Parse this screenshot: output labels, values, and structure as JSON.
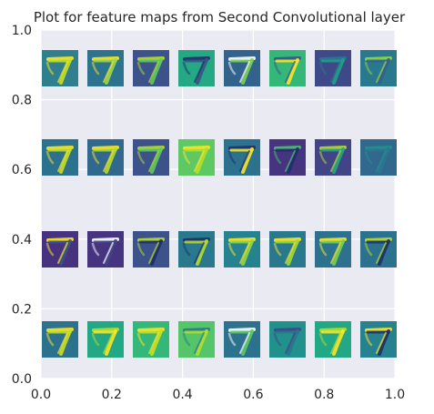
{
  "chart_data": {
    "type": "image-grid",
    "title": "Plot for feature maps from Second Convolutional layer",
    "xlabel": "",
    "ylabel": "",
    "xlim": [
      0.0,
      1.0
    ],
    "ylim": [
      0.0,
      1.0
    ],
    "x_ticks": [
      "0.0",
      "0.2",
      "0.4",
      "0.6",
      "0.8",
      "1.0"
    ],
    "y_ticks": [
      "0.0",
      "0.2",
      "0.4",
      "0.6",
      "0.8",
      "1.0"
    ],
    "grid": true,
    "background": "#eaeaf2",
    "colormap": "viridis",
    "image_subject": "7",
    "rows": 4,
    "cols": 8,
    "images": [
      [
        {
          "bg": "#2f7f8e",
          "stroke": "#c8e020",
          "accent": "#fde725",
          "shape": "seven"
        },
        {
          "bg": "#2c738e",
          "stroke": "#9cd84a",
          "accent": "#fde725",
          "shape": "seven"
        },
        {
          "bg": "#3b528b",
          "stroke": "#5ec962",
          "accent": "#b5de2b",
          "shape": "seven"
        },
        {
          "bg": "#25a884",
          "stroke": "#3b528b",
          "accent": "#1f2d6b",
          "shape": "seven"
        },
        {
          "bg": "#33638d",
          "stroke": "#7ad151",
          "accent": "#ffffff",
          "shape": "seven"
        },
        {
          "bg": "#35b779",
          "stroke": "#fde725",
          "accent": "#3b528b",
          "shape": "seven"
        },
        {
          "bg": "#3e4989",
          "stroke": "#1fa187",
          "accent": "#2a788e",
          "shape": "seven"
        },
        {
          "bg": "#2a788e",
          "stroke": "#355f8d",
          "accent": "#8fd744",
          "shape": "seven"
        }
      ],
      [
        {
          "bg": "#2c728e",
          "stroke": "#c8e020",
          "accent": "#fde725",
          "shape": "seven"
        },
        {
          "bg": "#31688e",
          "stroke": "#b5de2b",
          "accent": "#fde725",
          "shape": "seven"
        },
        {
          "bg": "#3b528b",
          "stroke": "#5ec962",
          "accent": "#b5de2b",
          "shape": "seven"
        },
        {
          "bg": "#5ec962",
          "stroke": "#b5de2b",
          "accent": "#fde725",
          "shape": "seven"
        },
        {
          "bg": "#2c728e",
          "stroke": "#fde725",
          "accent": "#1f2d6b",
          "shape": "seven"
        },
        {
          "bg": "#463480",
          "stroke": "#1f2d6b",
          "accent": "#4ac16d",
          "shape": "seven"
        },
        {
          "bg": "#414487",
          "stroke": "#22a884",
          "accent": "#b5de2b",
          "shape": "seven"
        },
        {
          "bg": "#31688e",
          "stroke": "#2a788e",
          "accent": "#21918c",
          "shape": "seven"
        }
      ],
      [
        {
          "bg": "#46327e",
          "stroke": "#3b528b",
          "accent": "#fde725",
          "shape": "seven"
        },
        {
          "bg": "#463480",
          "stroke": "#414487",
          "accent": "#ffffff",
          "shape": "seven"
        },
        {
          "bg": "#3b528b",
          "stroke": "#1f2d6b",
          "accent": "#b5de2b",
          "shape": "seven"
        },
        {
          "bg": "#2a788e",
          "stroke": "#b5de2b",
          "accent": "#1f2d6b",
          "shape": "seven"
        },
        {
          "bg": "#26828e",
          "stroke": "#95d840",
          "accent": "#fde725",
          "shape": "seven"
        },
        {
          "bg": "#2a788e",
          "stroke": "#a0da39",
          "accent": "#fde725",
          "shape": "seven"
        },
        {
          "bg": "#2c728e",
          "stroke": "#7ad151",
          "accent": "#fde725",
          "shape": "seven"
        },
        {
          "bg": "#2c728e",
          "stroke": "#1f2d6b",
          "accent": "#b5de2b",
          "shape": "seven"
        }
      ],
      [
        {
          "bg": "#2c728e",
          "stroke": "#c8e020",
          "accent": "#fde725",
          "shape": "seven"
        },
        {
          "bg": "#22a884",
          "stroke": "#fde725",
          "accent": "#b5de2b",
          "shape": "seven"
        },
        {
          "bg": "#35b779",
          "stroke": "#c8e020",
          "accent": "#fde725",
          "shape": "seven"
        },
        {
          "bg": "#54c568",
          "stroke": "#b5de2b",
          "accent": "#2a788e",
          "shape": "seven"
        },
        {
          "bg": "#2c728e",
          "stroke": "#5ec962",
          "accent": "#ffffff",
          "shape": "seven"
        },
        {
          "bg": "#21918c",
          "stroke": "#2c728e",
          "accent": "#414487",
          "shape": "seven"
        },
        {
          "bg": "#22a884",
          "stroke": "#fde725",
          "accent": "#b5de2b",
          "shape": "seven"
        },
        {
          "bg": "#26828e",
          "stroke": "#1f2d6b",
          "accent": "#fde725",
          "shape": "seven"
        }
      ]
    ]
  }
}
